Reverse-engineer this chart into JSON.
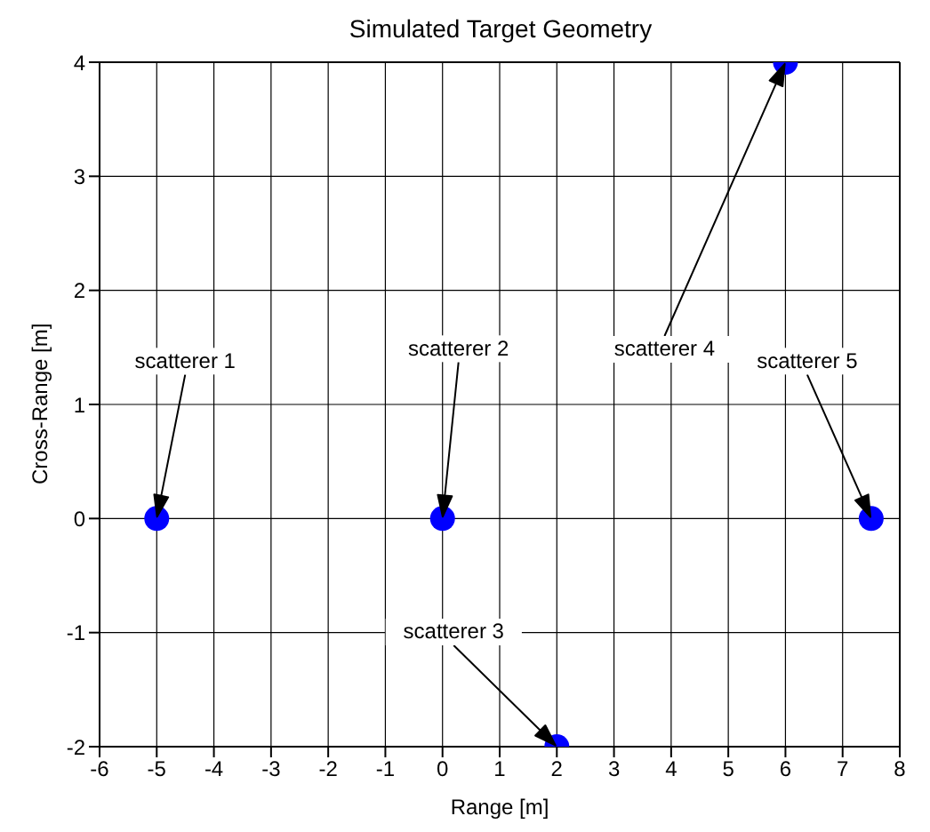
{
  "chart_data": {
    "type": "scatter",
    "title": "Simulated Target Geometry",
    "xlabel": "Range [m]",
    "ylabel": "Cross-Range [m]",
    "x": [
      -5,
      0,
      2,
      6,
      7.5
    ],
    "values": [
      0,
      0,
      -2,
      4,
      0
    ],
    "color": "#0000ff",
    "marker": "circle",
    "grid": true,
    "xlim": [
      -6,
      8
    ],
    "xticks": [
      -6,
      -5,
      -4,
      -3,
      -2,
      -1,
      0,
      1,
      2,
      3,
      4,
      5,
      6,
      7,
      8
    ],
    "ylim": [
      -2,
      4
    ],
    "yticks": [
      -2,
      -1,
      0,
      1,
      2,
      3,
      4
    ],
    "annotations": [
      "scatterer 1",
      "scatterer 2",
      "scatterer 3",
      "scatterer 4",
      "scatterer 5"
    ]
  }
}
